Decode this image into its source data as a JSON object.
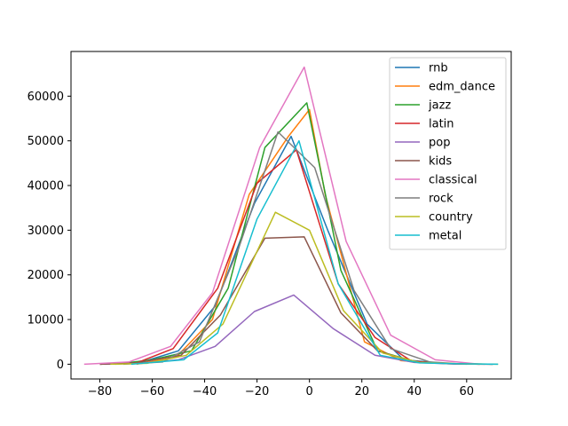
{
  "chart_data": {
    "type": "line",
    "title": "",
    "xlabel": "",
    "ylabel": "",
    "xlim": [
      -91,
      77
    ],
    "ylim": [
      -3300,
      70000
    ],
    "xticks": [
      -80,
      -60,
      -40,
      -20,
      0,
      20,
      40,
      60
    ],
    "yticks": [
      0,
      10000,
      20000,
      30000,
      40000,
      50000,
      60000
    ],
    "grid": false,
    "legend": "top-right",
    "series": [
      {
        "name": "rnb",
        "color": "#1f77b4",
        "x": [
          -80,
          -65,
          -50,
          -36,
          -21,
          -7,
          7,
          22,
          36,
          51,
          65
        ],
        "y": [
          0,
          300,
          3000,
          13000,
          36000,
          51000,
          30000,
          9000,
          1000,
          200,
          0
        ]
      },
      {
        "name": "edm_dance",
        "color": "#ff7f0e",
        "x": [
          -66,
          -51,
          -37,
          -23,
          -8,
          0,
          6,
          21,
          35,
          50,
          65
        ],
        "y": [
          0,
          1500,
          10000,
          38000,
          51000,
          57000,
          38000,
          5000,
          800,
          200,
          0
        ]
      },
      {
        "name": "jazz",
        "color": "#2ca02c",
        "x": [
          -74,
          -60,
          -45,
          -31,
          -17,
          -1,
          12,
          26,
          41,
          55,
          70
        ],
        "y": [
          0,
          1000,
          3000,
          17000,
          48500,
          58500,
          21000,
          3000,
          500,
          100,
          0
        ]
      },
      {
        "name": "latin",
        "color": "#d62728",
        "x": [
          -80,
          -66,
          -52,
          -35,
          -20,
          -5,
          11,
          25,
          39,
          53,
          67
        ],
        "y": [
          0,
          300,
          3500,
          17000,
          40500,
          48000,
          18000,
          6000,
          700,
          100,
          0
        ]
      },
      {
        "name": "pop",
        "color": "#9467bd",
        "x": [
          -78,
          -64,
          -50,
          -36,
          -21,
          -6,
          9,
          25,
          40,
          55,
          70
        ],
        "y": [
          0,
          200,
          1000,
          4000,
          11800,
          15500,
          8000,
          2000,
          400,
          50,
          0
        ]
      },
      {
        "name": "kids",
        "color": "#8c564b",
        "x": [
          -80,
          -66,
          -49,
          -34,
          -17,
          -2,
          12,
          26,
          40,
          55,
          70
        ],
        "y": [
          0,
          300,
          2000,
          11000,
          28200,
          28500,
          11500,
          3000,
          500,
          100,
          0
        ]
      },
      {
        "name": "classical",
        "color": "#e377c2",
        "x": [
          -86,
          -69,
          -53,
          -37,
          -19,
          -2,
          14,
          31,
          48,
          65
        ],
        "y": [
          0,
          500,
          4000,
          16000,
          48500,
          66500,
          27500,
          6500,
          1000,
          0
        ]
      },
      {
        "name": "rock",
        "color": "#7f7f7f",
        "x": [
          -71,
          -56,
          -42,
          -27,
          -12,
          2,
          17,
          31,
          46,
          60
        ],
        "y": [
          0,
          500,
          5000,
          26000,
          52000,
          44000,
          16500,
          3500,
          500,
          0
        ]
      },
      {
        "name": "country",
        "color": "#bcbd22",
        "x": [
          -76,
          -62,
          -47,
          -33,
          -13,
          0,
          13,
          28,
          42,
          57,
          72
        ],
        "y": [
          0,
          200,
          2000,
          9000,
          34000,
          30000,
          12000,
          2500,
          400,
          100,
          0
        ]
      },
      {
        "name": "metal",
        "color": "#17becf",
        "x": [
          -68,
          -48,
          -35,
          -20,
          -4,
          11,
          27,
          42,
          57,
          72
        ],
        "y": [
          0,
          1000,
          7000,
          32500,
          50000,
          18000,
          2000,
          300,
          100,
          0
        ]
      }
    ]
  }
}
